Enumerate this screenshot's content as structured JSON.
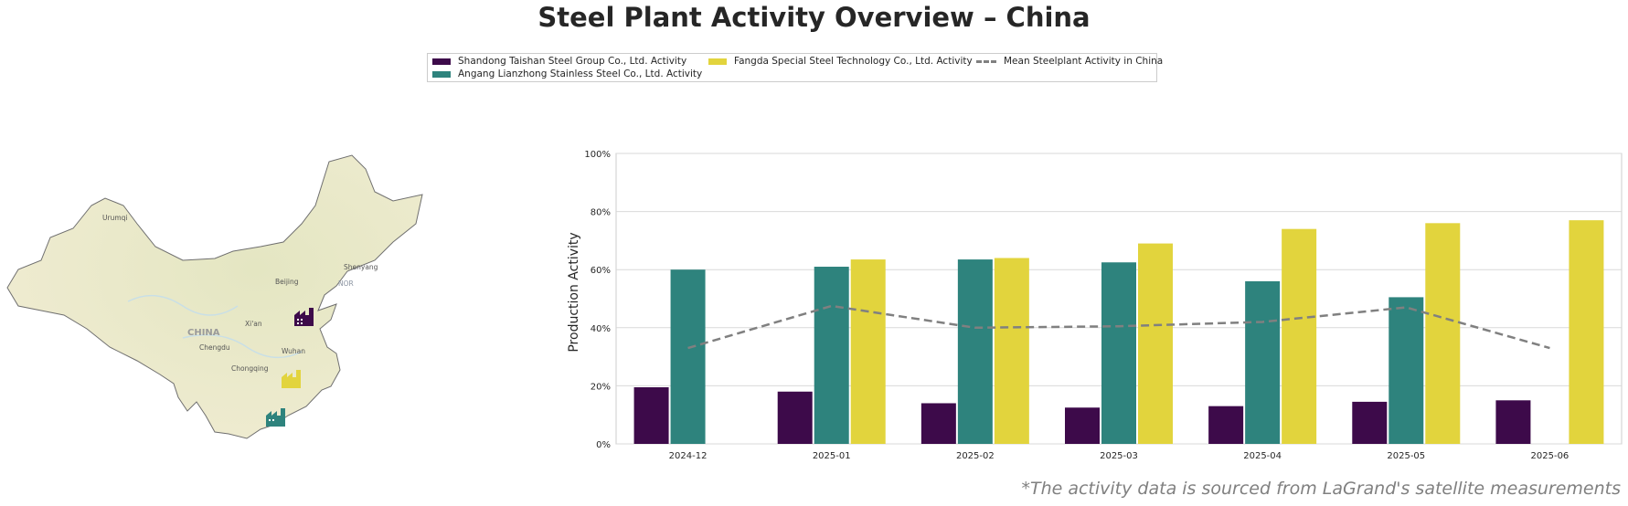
{
  "title": "Steel Plant Activity Overview – China",
  "legend": [
    {
      "label": "Shandong Taishan Steel Group Co., Ltd. Activity",
      "color": "#3d0a4a",
      "kind": "bar"
    },
    {
      "label": "Angang Lianzhong Stainless Steel Co., Ltd. Activity",
      "color": "#2e837d",
      "kind": "bar"
    },
    {
      "label": "Fangda Special Steel Technology Co., Ltd. Activity",
      "color": "#e2d43d",
      "kind": "bar"
    },
    {
      "label": "Mean Steelplant Activity in China",
      "color": "#808080",
      "kind": "dashed-line"
    }
  ],
  "map": {
    "country_label": "CHINA",
    "cities": [
      "Urumqi",
      "Beijing",
      "Shenyang",
      "Xi'an",
      "Chengdu",
      "Chongqing",
      "Wuhan"
    ],
    "extra_label": "NOR",
    "land_color": "#eeeccc",
    "marker_icons": [
      "factory-icon",
      "factory-icon",
      "factory-icon"
    ]
  },
  "chart_data": {
    "type": "bar",
    "title": "",
    "xlabel": "",
    "ylabel": "Production Activity",
    "categories": [
      "2024-12",
      "2025-01",
      "2025-02",
      "2025-03",
      "2025-04",
      "2025-05",
      "2025-06"
    ],
    "series": [
      {
        "name": "Shandong Taishan Steel Group Co., Ltd. Activity",
        "color": "#3d0a4a",
        "values": [
          19.5,
          18.0,
          14.0,
          12.5,
          13.0,
          14.5,
          15.0
        ]
      },
      {
        "name": "Angang Lianzhong Stainless Steel Co., Ltd. Activity",
        "color": "#2e837d",
        "values": [
          60.0,
          61.0,
          63.5,
          62.5,
          56.0,
          50.5,
          null
        ]
      },
      {
        "name": "Fangda Special Steel Technology Co., Ltd. Activity",
        "color": "#e2d43d",
        "values": [
          null,
          63.5,
          64.0,
          69.0,
          74.0,
          76.0,
          77.0
        ]
      }
    ],
    "mean_line": {
      "name": "Mean Steelplant Activity in China",
      "color": "#808080",
      "values": [
        33.0,
        47.5,
        40.0,
        40.5,
        42.0,
        47.0,
        33.0
      ]
    },
    "ylim": [
      0,
      100
    ],
    "yticks": [
      0,
      20,
      40,
      60,
      80,
      100
    ],
    "ytick_labels": [
      "0%",
      "20%",
      "40%",
      "60%",
      "80%",
      "100%"
    ],
    "grid": "horizontal",
    "legend_position": "top-center"
  },
  "footnote": "*The activity data is sourced from LaGrand's satellite measurements"
}
